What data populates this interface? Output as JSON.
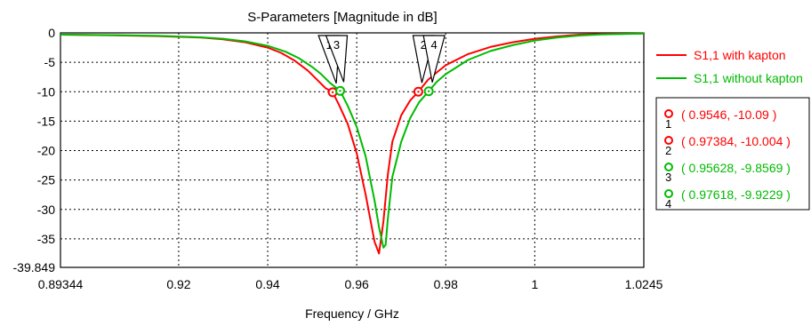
{
  "chart_data": {
    "type": "line",
    "title": "S-Parameters [Magnitude in dB]",
    "xlabel": "Frequency / GHz",
    "ylabel": "",
    "xlim": [
      0.89344,
      1.0245
    ],
    "ylim": [
      -39.849,
      0
    ],
    "x_ticks": [
      "0.89344",
      "0.92",
      "0.94",
      "0.96",
      "0.98",
      "1",
      "1.0245"
    ],
    "y_ticks": [
      "0",
      "-5",
      "-10",
      "-15",
      "-20",
      "-25",
      "-30",
      "-35",
      "-39.849"
    ],
    "grid": true,
    "legend_position": "right",
    "series": [
      {
        "name": "S1,1 with kapton",
        "color": "#ff0000",
        "x": [
          0.89344,
          0.905,
          0.915,
          0.925,
          0.93,
          0.935,
          0.94,
          0.943,
          0.946,
          0.949,
          0.951,
          0.953,
          0.9546,
          0.956,
          0.958,
          0.96,
          0.962,
          0.963,
          0.964,
          0.965,
          0.966,
          0.967,
          0.968,
          0.97,
          0.972,
          0.97384,
          0.976,
          0.978,
          0.98,
          0.985,
          0.99,
          0.995,
          1.0,
          1.005,
          1.01,
          1.015,
          1.02,
          1.0245
        ],
        "y": [
          -0.3,
          -0.4,
          -0.55,
          -0.8,
          -1.1,
          -1.6,
          -2.5,
          -3.4,
          -4.7,
          -6.4,
          -7.9,
          -9.4,
          -10.09,
          -12.2,
          -15.5,
          -20.5,
          -27.5,
          -31.5,
          -35.5,
          -37.5,
          -32.0,
          -24.0,
          -18.5,
          -14.0,
          -11.5,
          -10.004,
          -8.0,
          -6.7,
          -5.5,
          -3.6,
          -2.4,
          -1.6,
          -1.0,
          -0.6,
          -0.3,
          -0.2,
          -0.15,
          -0.1
        ]
      },
      {
        "name": "S1,1 without kapton",
        "color": "#00bb00",
        "x": [
          0.89344,
          0.905,
          0.915,
          0.925,
          0.93,
          0.935,
          0.94,
          0.944,
          0.947,
          0.95,
          0.952,
          0.954,
          0.95628,
          0.958,
          0.96,
          0.962,
          0.964,
          0.965,
          0.966,
          0.9665,
          0.967,
          0.968,
          0.97,
          0.972,
          0.974,
          0.97618,
          0.978,
          0.98,
          0.985,
          0.99,
          0.995,
          1.0,
          1.005,
          1.01,
          1.015,
          1.02,
          1.0245
        ],
        "y": [
          -0.3,
          -0.38,
          -0.5,
          -0.75,
          -1.0,
          -1.45,
          -2.2,
          -3.2,
          -4.3,
          -5.8,
          -7.0,
          -8.5,
          -9.8569,
          -12.4,
          -16.0,
          -21.0,
          -28.5,
          -33.0,
          -36.5,
          -36.0,
          -31.5,
          -24.5,
          -18.5,
          -14.5,
          -11.8,
          -9.9229,
          -8.3,
          -7.0,
          -4.6,
          -3.1,
          -2.1,
          -1.3,
          -0.8,
          -0.45,
          -0.25,
          -0.18,
          -0.12
        ]
      }
    ],
    "markers": [
      {
        "id": "1",
        "x": 0.9546,
        "y": -10.09,
        "label": "( 0.9546, -10.09 )",
        "color": "#ff0000"
      },
      {
        "id": "2",
        "x": 0.97384,
        "y": -10.004,
        "label": "( 0.97384, -10.004 )",
        "color": "#ff0000"
      },
      {
        "id": "3",
        "x": 0.95628,
        "y": -9.8569,
        "label": "( 0.95628, -9.8569 )",
        "color": "#00bb00"
      },
      {
        "id": "4",
        "x": 0.97618,
        "y": -9.9229,
        "label": "( 0.97618, -9.9229 )",
        "color": "#00bb00"
      }
    ]
  }
}
